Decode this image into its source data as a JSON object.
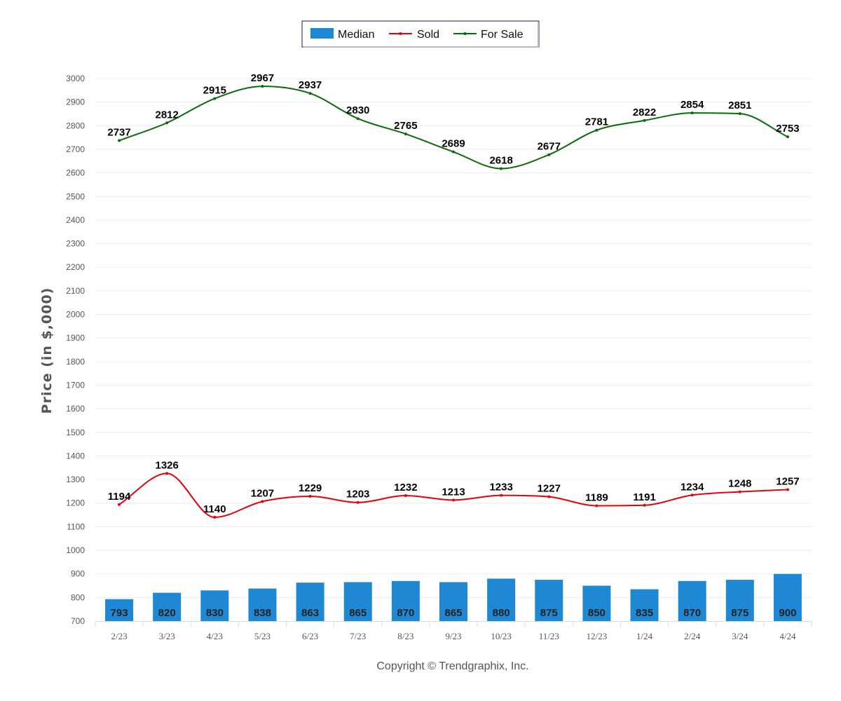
{
  "chart_data": {
    "type": "bar",
    "categories": [
      "2/23",
      "3/23",
      "4/23",
      "5/23",
      "6/23",
      "7/23",
      "8/23",
      "9/23",
      "10/23",
      "11/23",
      "12/23",
      "1/24",
      "2/24",
      "3/24",
      "4/24"
    ],
    "series": [
      {
        "name": "Median",
        "type": "bar",
        "color": "#1f88d4",
        "values": [
          793,
          820,
          830,
          838,
          863,
          865,
          870,
          865,
          880,
          875,
          850,
          835,
          870,
          875,
          900
        ]
      },
      {
        "name": "Sold",
        "type": "line",
        "color": "#e8000b",
        "values": [
          1194,
          1326,
          1140,
          1207,
          1229,
          1203,
          1232,
          1213,
          1233,
          1227,
          1189,
          1191,
          1234,
          1248,
          1257
        ]
      },
      {
        "name": "For Sale",
        "type": "line",
        "color": "#0a6b0a",
        "values": [
          2737,
          2812,
          2915,
          2967,
          2937,
          2830,
          2765,
          2689,
          2618,
          2677,
          2781,
          2822,
          2854,
          2851,
          2753
        ]
      }
    ],
    "ylabel": "Price (in $,000)",
    "xlabel": "",
    "ylim": [
      700,
      3000
    ],
    "ytick_step": 100,
    "grid": true,
    "legend": "top-center"
  },
  "legend": {
    "items": [
      {
        "label": "Median",
        "marker": "bar"
      },
      {
        "label": "Sold",
        "marker": "line"
      },
      {
        "label": "For Sale",
        "marker": "line"
      }
    ]
  },
  "footer": {
    "copyright": "Copyright © Trendgraphix, Inc."
  }
}
